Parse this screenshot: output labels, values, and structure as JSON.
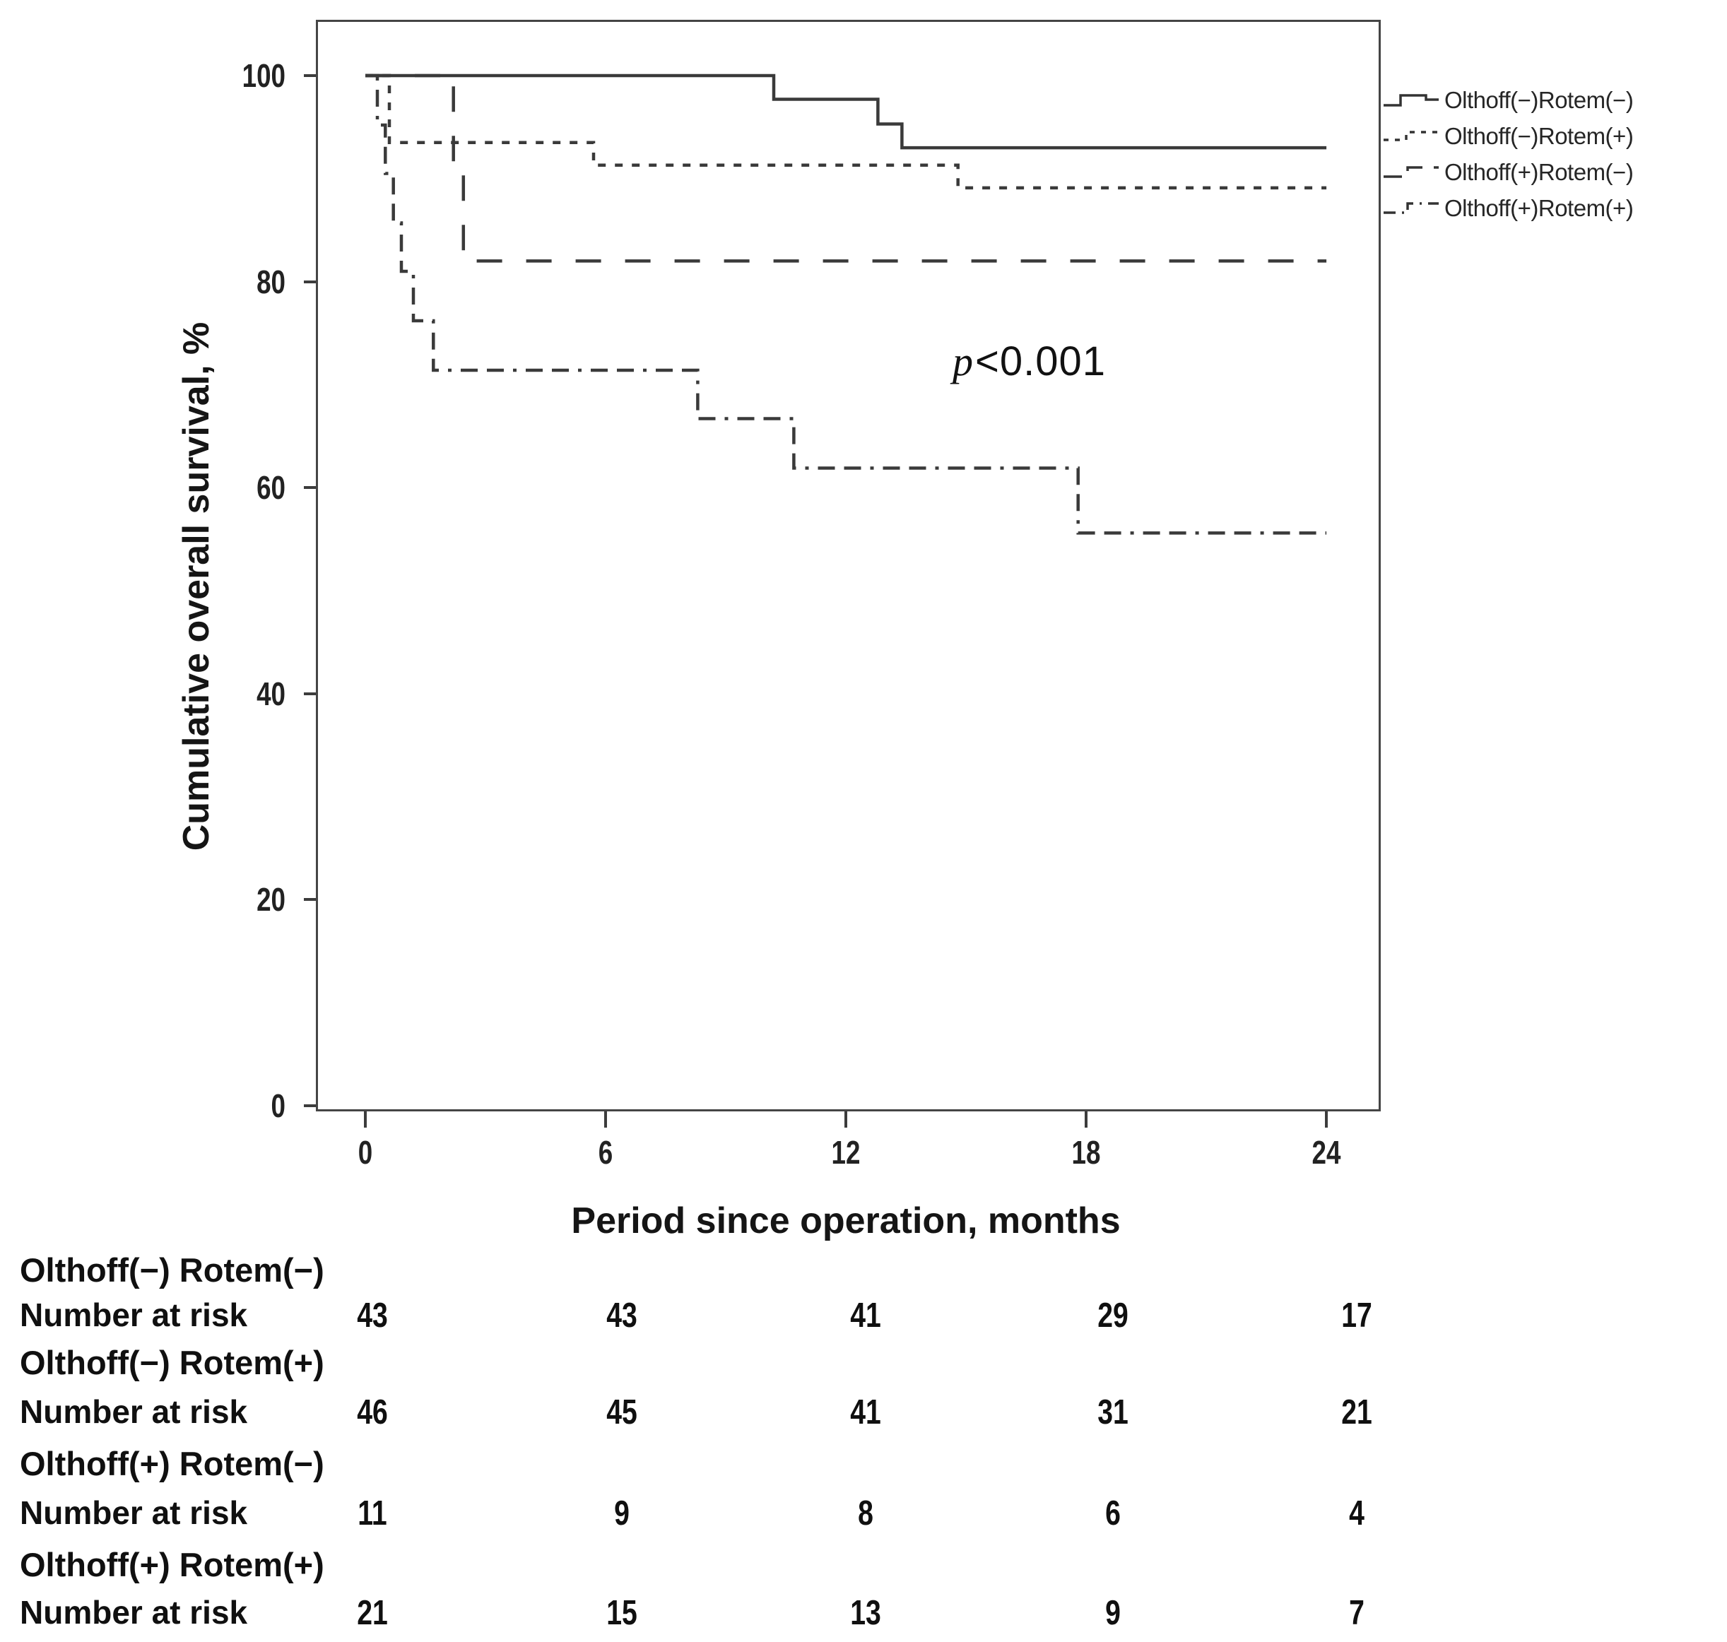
{
  "figure": {
    "p_annotation": {
      "text": "p<0.001",
      "symbol": "p",
      "rest": "<0.001"
    }
  },
  "chart_data": {
    "type": "line",
    "subtype": "kaplan-meier-step-curves",
    "title": "",
    "xlabel": "Period since operation, months",
    "ylabel": "Cumulative overall survival, %",
    "xlim": [
      0,
      24
    ],
    "ylim": [
      0,
      100
    ],
    "x_ticks": [
      0,
      6,
      12,
      18,
      24
    ],
    "y_ticks": [
      100,
      80,
      60,
      40,
      20,
      0
    ],
    "grid": false,
    "legend_position": "right-outside-top",
    "annotation": "p<0.001",
    "line_color": "#3a3a3a",
    "series": [
      {
        "name": "Olthoff(−)Rotem(−)",
        "line_style": "solid",
        "points": [
          [
            0,
            100
          ],
          [
            10.2,
            100
          ],
          [
            10.2,
            97.7
          ],
          [
            12.8,
            97.7
          ],
          [
            12.8,
            95.3
          ],
          [
            13.4,
            95.3
          ],
          [
            13.4,
            93.0
          ],
          [
            24,
            93.0
          ]
        ]
      },
      {
        "name": "Olthoff(−)Rotem(+)",
        "line_style": "dotted",
        "points": [
          [
            0,
            100
          ],
          [
            0.6,
            100
          ],
          [
            0.6,
            93.5
          ],
          [
            5.7,
            93.5
          ],
          [
            5.7,
            91.3
          ],
          [
            14.8,
            91.3
          ],
          [
            14.8,
            89.1
          ],
          [
            24,
            89.1
          ]
        ]
      },
      {
        "name": "Olthoff(+)Rotem(−)",
        "line_style": "long-dash",
        "points": [
          [
            0,
            100
          ],
          [
            2.2,
            100
          ],
          [
            2.2,
            90.9
          ],
          [
            2.45,
            90.9
          ],
          [
            2.45,
            82.0
          ],
          [
            24,
            82.0
          ]
        ]
      },
      {
        "name": "Olthoff(+)Rotem(+)",
        "line_style": "dash-dot",
        "points": [
          [
            0,
            100
          ],
          [
            0.3,
            100
          ],
          [
            0.3,
            95.2
          ],
          [
            0.5,
            95.2
          ],
          [
            0.5,
            90.5
          ],
          [
            0.7,
            90.5
          ],
          [
            0.7,
            85.7
          ],
          [
            0.9,
            85.7
          ],
          [
            0.9,
            81.0
          ],
          [
            1.2,
            81.0
          ],
          [
            1.2,
            76.2
          ],
          [
            1.7,
            76.2
          ],
          [
            1.7,
            71.4
          ],
          [
            8.3,
            71.4
          ],
          [
            8.3,
            66.7
          ],
          [
            10.7,
            66.7
          ],
          [
            10.7,
            61.9
          ],
          [
            17.8,
            61.9
          ],
          [
            17.8,
            55.6
          ],
          [
            24,
            55.6
          ]
        ]
      }
    ],
    "risk_table": {
      "row_label": "Number at risk",
      "time_points": [
        0,
        6,
        12,
        18,
        24
      ],
      "groups": [
        {
          "name": "Olthoff(−) Rotem(−)",
          "values": [
            43,
            43,
            41,
            29,
            17
          ]
        },
        {
          "name": "Olthoff(−) Rotem(+)",
          "values": [
            46,
            45,
            41,
            31,
            21
          ]
        },
        {
          "name": "Olthoff(+) Rotem(−)",
          "values": [
            11,
            9,
            8,
            6,
            4
          ]
        },
        {
          "name": "Olthoff(+) Rotem(+)",
          "values": [
            21,
            15,
            13,
            9,
            7
          ]
        }
      ]
    }
  }
}
